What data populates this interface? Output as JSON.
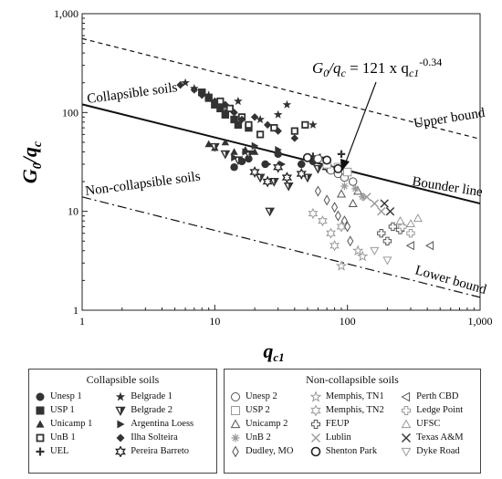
{
  "chart_data": {
    "type": "scatter",
    "x_scale": "log",
    "y_scale": "log",
    "xlim": [
      1,
      1000
    ],
    "ylim": [
      1,
      1000
    ],
    "x_ticks": [
      "1",
      "10",
      "100",
      "1,000"
    ],
    "y_ticks": [
      "1",
      "10",
      "100",
      "1,000"
    ],
    "xlabel_main": "q",
    "xlabel_sub": "c1",
    "ylabel_main": "G",
    "ylabel_sub0": "0",
    "ylabel_slash": "/q",
    "ylabel_subc": "c",
    "grid": false,
    "equation": {
      "lhs": "G",
      "lhs_sub": "0",
      "mid": "/q",
      "mid_sub": "c",
      "rhs": " = 121 x q",
      "rhs_sub": "c1",
      "exponent": "-0.34"
    },
    "region_labels": {
      "collapsible": "Collapsible soils",
      "non_collapsible": "Non-collapsible soils"
    },
    "lines": [
      {
        "name": "Upper bound",
        "style": "dashed",
        "x": [
          1,
          1000
        ],
        "y": [
          560,
          54
        ]
      },
      {
        "name": "Bounder line",
        "style": "solid",
        "x": [
          1,
          1000
        ],
        "y": [
          121,
          12
        ]
      },
      {
        "name": "Lower bound",
        "style": "dashdot",
        "x": [
          1,
          1000
        ],
        "y": [
          14,
          1.35
        ]
      }
    ],
    "collapsible_series": [
      {
        "name": "Unesp 1",
        "marker": "circle-filled",
        "points": [
          [
            14,
            28
          ],
          [
            16,
            32
          ],
          [
            18,
            34
          ],
          [
            24,
            30
          ],
          [
            30,
            38
          ],
          [
            45,
            30
          ],
          [
            55,
            32
          ]
        ]
      },
      {
        "name": "USP 1",
        "marker": "square-filled",
        "points": [
          [
            8,
            160
          ],
          [
            9,
            140
          ],
          [
            10,
            120
          ],
          [
            11,
            110
          ],
          [
            12,
            95
          ],
          [
            14,
            85
          ],
          [
            15,
            75
          ],
          [
            18,
            70
          ]
        ]
      },
      {
        "name": "Unicamp 1",
        "marker": "triangle-filled",
        "points": [
          [
            9,
            48
          ],
          [
            10,
            44
          ],
          [
            12,
            50
          ],
          [
            14,
            40
          ],
          [
            17,
            42
          ],
          [
            20,
            40
          ]
        ]
      },
      {
        "name": "UnB 1",
        "marker": "square-open",
        "points": [
          [
            11,
            130
          ],
          [
            13,
            110
          ],
          [
            16,
            90
          ],
          [
            18,
            75
          ],
          [
            22,
            60
          ],
          [
            28,
            70
          ],
          [
            40,
            65
          ],
          [
            48,
            75
          ]
        ]
      },
      {
        "name": "UEL",
        "marker": "plus",
        "points": [
          [
            45,
            30
          ],
          [
            55,
            36
          ],
          [
            62,
            35
          ],
          [
            70,
            30
          ],
          [
            90,
            38
          ]
        ]
      },
      {
        "name": "Belgrade 1",
        "marker": "star-filled",
        "points": [
          [
            6,
            200
          ],
          [
            7,
            175
          ],
          [
            9,
            150
          ],
          [
            12,
            100
          ],
          [
            15,
            130
          ],
          [
            22,
            85
          ],
          [
            30,
            95
          ],
          [
            35,
            120
          ],
          [
            55,
            75
          ]
        ]
      },
      {
        "name": "Belgrade 2",
        "marker": "triangle-down",
        "points": [
          [
            10,
            45
          ],
          [
            12,
            38
          ],
          [
            15,
            33
          ],
          [
            18,
            38
          ],
          [
            22,
            22
          ],
          [
            28,
            20
          ],
          [
            36,
            18
          ],
          [
            50,
            22
          ],
          [
            60,
            27
          ],
          [
            26,
            10
          ]
        ]
      },
      {
        "name": "Argentina Loess",
        "marker": "triangle-right",
        "points": [
          [
            14,
            35
          ],
          [
            17,
            40
          ],
          [
            20,
            46
          ],
          [
            25,
            30
          ],
          [
            30,
            42
          ],
          [
            32,
            30
          ]
        ]
      },
      {
        "name": "Ilha Solteira",
        "marker": "diamond-filled",
        "points": [
          [
            5.5,
            190
          ],
          [
            7,
            170
          ],
          [
            8,
            150
          ],
          [
            10,
            130
          ],
          [
            12,
            120
          ],
          [
            14,
            100
          ],
          [
            16,
            85
          ],
          [
            20,
            90
          ],
          [
            25,
            75
          ],
          [
            30,
            65
          ],
          [
            40,
            55
          ]
        ]
      },
      {
        "name": "Pereira Barreto",
        "marker": "star6-open",
        "points": [
          [
            20,
            25
          ],
          [
            25,
            20
          ],
          [
            30,
            28
          ],
          [
            35,
            22
          ],
          [
            45,
            24
          ],
          [
            70,
            28
          ]
        ]
      }
    ],
    "non_collapsible_series": [
      {
        "name": "Unesp 2",
        "marker": "circle-open",
        "points": [
          [
            60,
            34
          ],
          [
            75,
            26
          ],
          [
            85,
            24
          ],
          [
            95,
            22
          ],
          [
            110,
            20
          ]
        ]
      },
      {
        "name": "USP 2",
        "marker": "square-open-light",
        "points": [
          [
            70,
            30
          ],
          [
            85,
            28
          ],
          [
            100,
            25
          ]
        ]
      },
      {
        "name": "Unicamp 2",
        "marker": "triangle-open",
        "points": [
          [
            90,
            15
          ],
          [
            110,
            12
          ],
          [
            120,
            16
          ]
        ]
      },
      {
        "name": "UnB 2",
        "marker": "asterisk",
        "points": [
          [
            95,
            18
          ],
          [
            115,
            17
          ],
          [
            130,
            14
          ]
        ]
      },
      {
        "name": "Dudley, MO",
        "marker": "diamond-open",
        "points": [
          [
            60,
            16
          ],
          [
            70,
            13
          ],
          [
            80,
            11
          ],
          [
            85,
            9
          ],
          [
            95,
            8
          ],
          [
            100,
            7
          ],
          [
            105,
            5
          ]
        ]
      },
      {
        "name": "Memphis, TN1",
        "marker": "star-open",
        "points": [
          [
            90,
            2.8
          ],
          [
            120,
            4
          ],
          [
            130,
            3.5
          ]
        ]
      },
      {
        "name": "Memphis, TN2",
        "marker": "star6-light",
        "points": [
          [
            55,
            9.5
          ],
          [
            65,
            8
          ],
          [
            75,
            6
          ],
          [
            80,
            4.5
          ],
          [
            90,
            7
          ]
        ]
      },
      {
        "name": "FEUP",
        "marker": "plus-open",
        "points": [
          [
            180,
            6
          ],
          [
            200,
            5
          ],
          [
            220,
            7
          ],
          [
            250,
            6.5
          ]
        ]
      },
      {
        "name": "Lublin",
        "marker": "x-light",
        "points": [
          [
            140,
            14
          ],
          [
            160,
            12
          ],
          [
            180,
            10
          ]
        ]
      },
      {
        "name": "Shenton Park",
        "marker": "circle-open-bold",
        "points": [
          [
            50,
            35
          ],
          [
            70,
            33
          ],
          [
            85,
            27
          ]
        ]
      },
      {
        "name": "Perth CBD",
        "marker": "triangle-left",
        "points": [
          [
            300,
            4.5
          ],
          [
            420,
            4.5
          ]
        ]
      },
      {
        "name": "Ledge Point",
        "marker": "plus-open-light",
        "points": [
          [
            260,
            7
          ],
          [
            300,
            6
          ]
        ]
      },
      {
        "name": "UFSC",
        "marker": "triangle-open-light",
        "points": [
          [
            250,
            8
          ],
          [
            300,
            7.5
          ],
          [
            340,
            8.5
          ]
        ]
      },
      {
        "name": "Texas A&M",
        "marker": "x",
        "points": [
          [
            190,
            12
          ],
          [
            210,
            10
          ]
        ]
      },
      {
        "name": "Dyke Road",
        "marker": "triangle-down-open",
        "points": [
          [
            160,
            4
          ],
          [
            200,
            3.2
          ]
        ]
      }
    ]
  },
  "legend": {
    "collapsible_title": "Collapsible soils",
    "collapsible_items": [
      {
        "label": "Unesp 1",
        "marker": "circle-filled"
      },
      {
        "label": "USP 1",
        "marker": "square-filled"
      },
      {
        "label": "Unicamp 1",
        "marker": "triangle-filled"
      },
      {
        "label": "UnB 1",
        "marker": "square-open"
      },
      {
        "label": "UEL",
        "marker": "plus"
      },
      {
        "label": "Belgrade 1",
        "marker": "star-filled"
      },
      {
        "label": "Belgrade 2",
        "marker": "triangle-down"
      },
      {
        "label": "Argentina Loess",
        "marker": "triangle-right"
      },
      {
        "label": "Ilha Solteira",
        "marker": "diamond-filled"
      },
      {
        "label": "Pereira Barreto",
        "marker": "star6-open"
      }
    ],
    "non_collapsible_title": "Non-collapsible soils",
    "non_collapsible_items": [
      {
        "label": "Unesp 2",
        "marker": "circle-open"
      },
      {
        "label": "USP 2",
        "marker": "square-open-light"
      },
      {
        "label": "Unicamp 2",
        "marker": "triangle-open"
      },
      {
        "label": "UnB 2",
        "marker": "asterisk"
      },
      {
        "label": "Dudley, MO",
        "marker": "diamond-open"
      },
      {
        "label": "Memphis, TN1",
        "marker": "star-open"
      },
      {
        "label": "Memphis, TN2",
        "marker": "star6-light"
      },
      {
        "label": "FEUP",
        "marker": "plus-open"
      },
      {
        "label": "Lublin",
        "marker": "x-light"
      },
      {
        "label": "Shenton Park",
        "marker": "circle-open-bold"
      },
      {
        "label": "Perth CBD",
        "marker": "triangle-left"
      },
      {
        "label": "Ledge Point",
        "marker": "plus-open-light"
      },
      {
        "label": "UFSC",
        "marker": "triangle-open-light"
      },
      {
        "label": "Texas A&M",
        "marker": "x"
      },
      {
        "label": "Dyke Road",
        "marker": "triangle-down-open"
      }
    ]
  }
}
